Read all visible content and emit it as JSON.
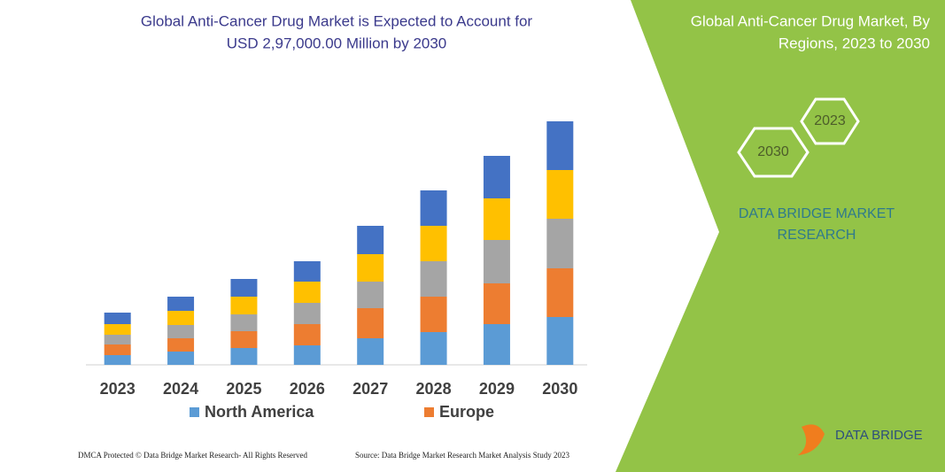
{
  "chart_data": {
    "type": "stacked-bar",
    "title": [
      "Global Anti-Cancer Drug Market is Expected to Account for",
      "USD 2,97,000.00 Million by 2030"
    ],
    "categories": [
      "2023",
      "2024",
      "2025",
      "2026",
      "2027",
      "2028",
      "2029",
      "2030"
    ],
    "series": [
      {
        "name": "North America",
        "color": "#5b9bd5",
        "values": [
          11,
          15,
          19,
          22,
          30,
          37,
          46,
          54
        ]
      },
      {
        "name": "Europe",
        "color": "#ed7d31",
        "values": [
          12,
          15,
          19,
          24,
          34,
          40,
          46,
          55
        ]
      },
      {
        "color": "#a5a5a5",
        "values": [
          11,
          15,
          19,
          24,
          30,
          40,
          49,
          56
        ]
      },
      {
        "color": "#ffc000",
        "values": [
          12,
          16,
          20,
          24,
          31,
          40,
          47,
          55
        ]
      },
      {
        "color": "#4472c4",
        "values": [
          13,
          16,
          20,
          23,
          32,
          40,
          48,
          55
        ]
      }
    ],
    "ylim": [
      0,
      275
    ],
    "grid": false
  },
  "panel": {
    "title": [
      "Global Anti-Cancer Drug Market, By",
      "Regions, 2023 to 2030"
    ],
    "hexagons": [
      "2023",
      "2030"
    ],
    "brand": [
      "DATA BRIDGE MARKET",
      "RESEARCH"
    ]
  },
  "footer": {
    "copyright": "DMCA Protected © Data Bridge Market Research- All Rights Reserved",
    "source": "Source: Data Bridge Market Research Market Analysis Study 2023",
    "logo": "DATA BRIDGE"
  }
}
